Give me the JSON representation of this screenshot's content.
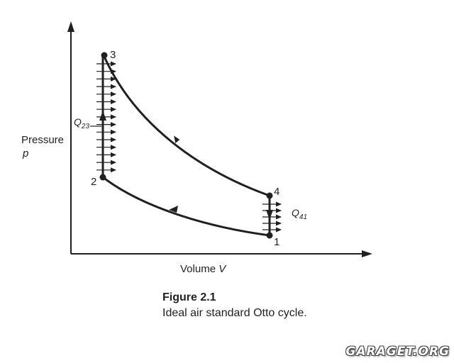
{
  "axes": {
    "y_label_line1": "Pressure",
    "y_label_line2": "p",
    "x_label_text": "Volume ",
    "x_label_var": "V"
  },
  "points": {
    "p1": "1",
    "p2": "2",
    "p3": "3",
    "p4": "4"
  },
  "heat": {
    "q23_main": "Q",
    "q23_sub": "23",
    "q41_main": "Q",
    "q41_sub": "41"
  },
  "caption": {
    "title": "Figure 2.1",
    "text": "Ideal air standard Otto cycle."
  },
  "watermark": "GARAGET.ORG",
  "colors": {
    "ink": "#231f20",
    "background": "#ffffff"
  }
}
